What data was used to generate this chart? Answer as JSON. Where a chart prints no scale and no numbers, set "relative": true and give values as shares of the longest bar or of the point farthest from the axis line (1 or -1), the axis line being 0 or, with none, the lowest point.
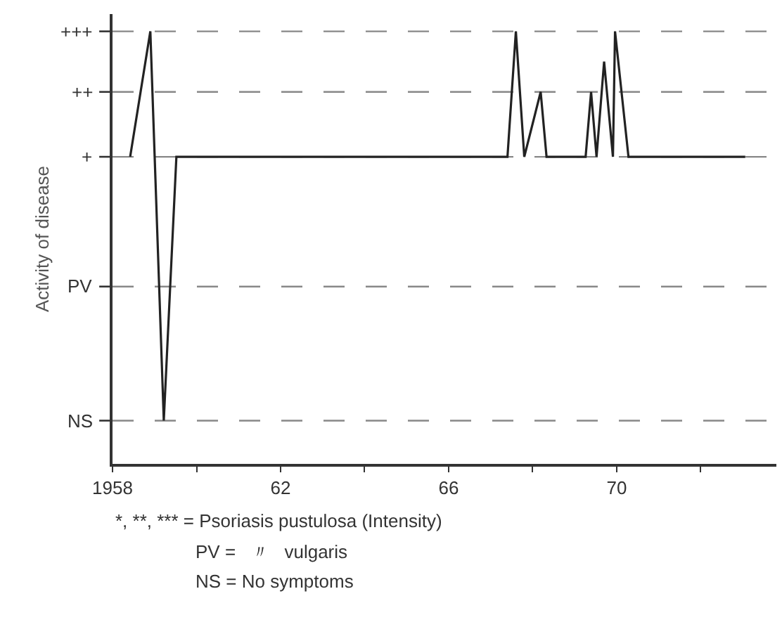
{
  "chart_data": {
    "type": "line",
    "ylabel": "Activity of disease",
    "relative": true,
    "x": [
      1958.42,
      1958.9,
      1959.22,
      1959.52,
      1967.4,
      1967.6,
      1967.8,
      1968.19,
      1968.33,
      1969.26,
      1969.39,
      1969.52,
      1969.7,
      1969.91,
      1969.96,
      1970.28,
      1973.06
    ],
    "series": [
      {
        "color": "#222222",
        "values": [
          0.71,
          1,
          0.1,
          0.71,
          0.71,
          1,
          0.71,
          0.86,
          0.71,
          0.71,
          0.86,
          0.71,
          0.93,
          0.71,
          1,
          0.71,
          0.71
        ]
      }
    ],
    "xlim": [
      1958,
      1973.8
    ],
    "xticks": [
      {
        "value": 1958,
        "label": "1958"
      },
      {
        "value": 1960,
        "label": null
      },
      {
        "value": 1962,
        "label": "62"
      },
      {
        "value": 1964,
        "label": null
      },
      {
        "value": 1966,
        "label": "66"
      },
      {
        "value": 1968,
        "label": null
      },
      {
        "value": 1970,
        "label": "70"
      },
      {
        "value": 1972,
        "label": null
      }
    ],
    "ref_lines": [
      {
        "axis": "y",
        "value": 1,
        "label": "+++",
        "line_style": "dashed",
        "color": "#888888"
      },
      {
        "axis": "y",
        "value": 0.86,
        "label": "++",
        "line_style": "dashed",
        "color": "#888888"
      },
      {
        "axis": "y",
        "value": 0.71,
        "label": "+",
        "line_style": "dashed",
        "color": "#888888"
      },
      {
        "axis": "y",
        "value": 0.41,
        "label": "PV",
        "line_style": "dashed",
        "color": "#888888"
      },
      {
        "axis": "y",
        "value": 0.1,
        "label": "NS",
        "line_style": "dashed",
        "color": "#888888"
      }
    ],
    "line_style": "solid",
    "annotations": [
      "*, **, *** = Psoriasis pustulosa (Intensity)",
      "PV =   〃   vulgaris",
      "NS = No symptoms"
    ]
  }
}
